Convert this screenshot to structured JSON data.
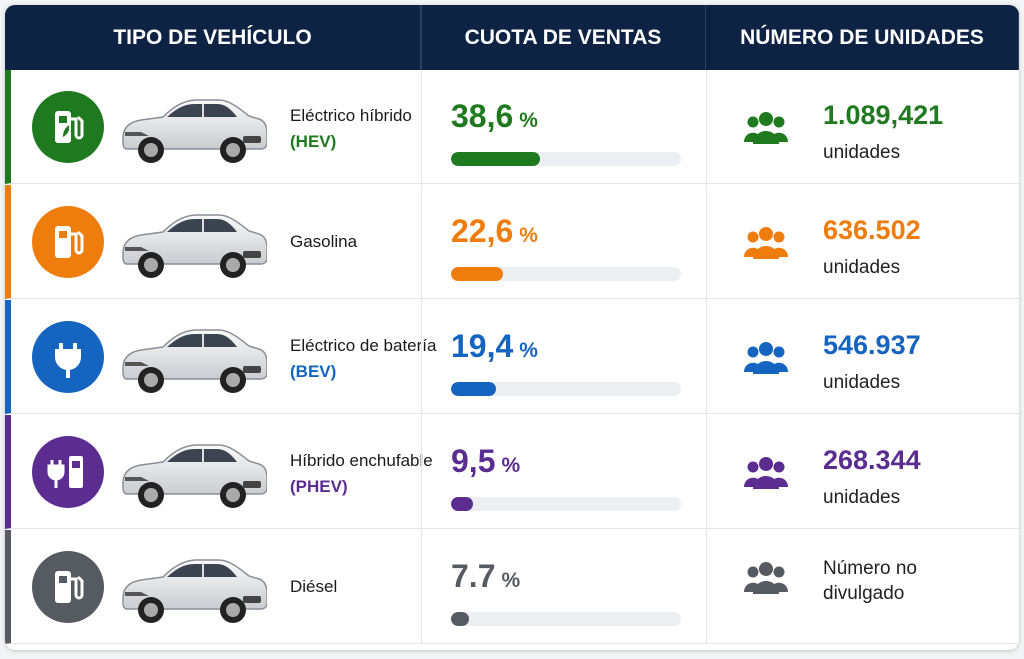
{
  "header": {
    "columns": [
      "TIPO DE VEHÍCULO",
      "CUOTA DE VENTAS",
      "NÚMERO DE UNIDADES"
    ]
  },
  "rows": [
    {
      "name": "Eléctrico híbrido",
      "code": "(HEV)",
      "color": "#1f7a1f",
      "share": {
        "value": 38.6,
        "label": "38,6"
      },
      "percent_sign": "%",
      "units": "1.089,421",
      "units_label": "unidades"
    },
    {
      "name": "Gasolina",
      "color": "#ee7d0e",
      "share": {
        "value": 22.6,
        "label": "22,6"
      },
      "percent_sign": "%",
      "units": "636.502",
      "units_label": "unidades"
    },
    {
      "name": "Eléctrico de batería",
      "code": "(BEV)",
      "color": "#1565c0",
      "share": {
        "value": 19.4,
        "label": "19,4"
      },
      "percent_sign": "%",
      "units": "546.937",
      "units_label": "unidades"
    },
    {
      "name": "Híbrido enchufable",
      "code": "(PHEV)",
      "color": "#5b2d90",
      "share": {
        "value": 9.5,
        "label": "9,5"
      },
      "percent_sign": "%",
      "units": "268.344",
      "units_label": "unidades"
    },
    {
      "name": "Diésel",
      "color": "#565b61",
      "share": {
        "value": 7.7,
        "label": "7.7"
      },
      "percent_sign": "%",
      "units": "Número no divulgado"
    }
  ]
}
